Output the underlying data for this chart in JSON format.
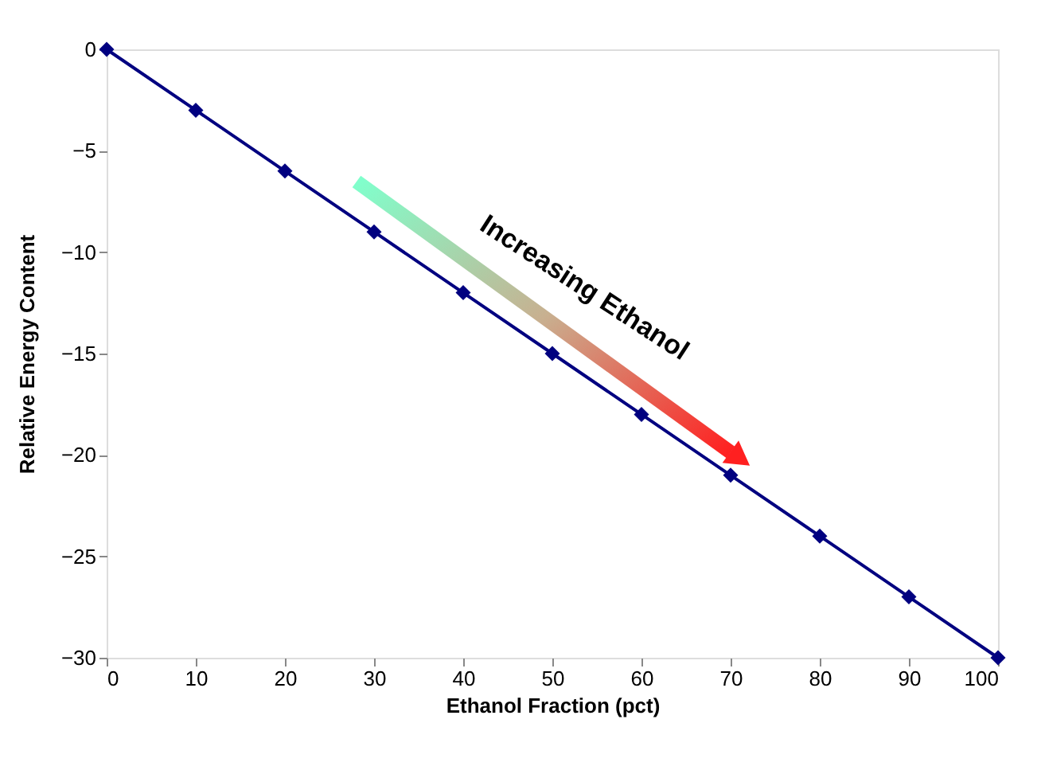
{
  "chart_data": {
    "type": "line",
    "xlabel": "Ethanol Fraction (pct)",
    "ylabel": "Relative Energy Content",
    "x": [
      0,
      10,
      20,
      30,
      40,
      50,
      60,
      70,
      80,
      90,
      100
    ],
    "series": [
      {
        "color": "#000080",
        "values": [
          0,
          -3,
          -6,
          -9,
          -12,
          -15,
          -18,
          -21,
          -24,
          -27,
          -30
        ]
      }
    ],
    "xlim": [
      0,
      100
    ],
    "xticks": [
      0,
      10,
      20,
      30,
      40,
      50,
      60,
      70,
      80,
      90,
      100
    ],
    "ylim": [
      -30,
      0
    ],
    "yticks": [
      0,
      -5,
      -10,
      -15,
      -20,
      -25,
      -30
    ],
    "marker": "diamond",
    "line_style": "solid",
    "grid": false,
    "annotations": [
      "Increasing Ethanol"
    ]
  }
}
